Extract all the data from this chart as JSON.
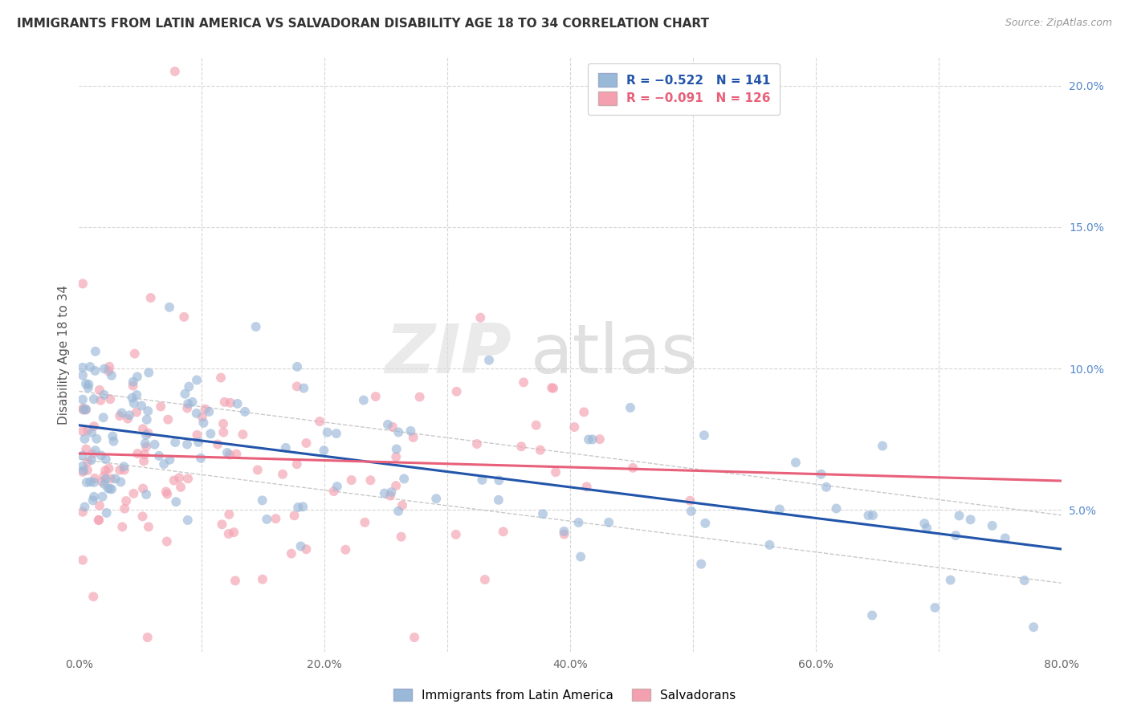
{
  "title": "IMMIGRANTS FROM LATIN AMERICA VS SALVADORAN DISABILITY AGE 18 TO 34 CORRELATION CHART",
  "source": "Source: ZipAtlas.com",
  "ylabel": "Disability Age 18 to 34",
  "xlim": [
    0.0,
    0.8
  ],
  "ylim": [
    0.0,
    0.21
  ],
  "blue_R": -0.522,
  "blue_N": 141,
  "pink_R": -0.091,
  "pink_N": 126,
  "blue_color": "#9AB8D8",
  "pink_color": "#F4A0B0",
  "blue_line_color": "#2255AA",
  "pink_line_color": "#E8607A",
  "watermark_zip": "ZIP",
  "watermark_atlas": "atlas",
  "xticks": [
    0.0,
    0.1,
    0.2,
    0.3,
    0.4,
    0.5,
    0.6,
    0.7,
    0.8
  ],
  "xtick_labels": [
    "0.0%",
    "",
    "20.0%",
    "",
    "40.0%",
    "",
    "60.0%",
    "",
    "80.0%"
  ],
  "yticks": [
    0.0,
    0.05,
    0.1,
    0.15,
    0.2
  ],
  "ytick_labels_right": [
    "",
    "5.0%",
    "10.0%",
    "15.0%",
    "20.0%"
  ],
  "background_color": "#FFFFFF",
  "grid_color": "#CCCCCC",
  "blue_scatter_seed": 42,
  "pink_scatter_seed": 99,
  "legend_R_blue": "R = −0.522",
  "legend_N_blue": "N = 141",
  "legend_R_pink": "R = −0.091",
  "legend_N_pink": "N = 126"
}
